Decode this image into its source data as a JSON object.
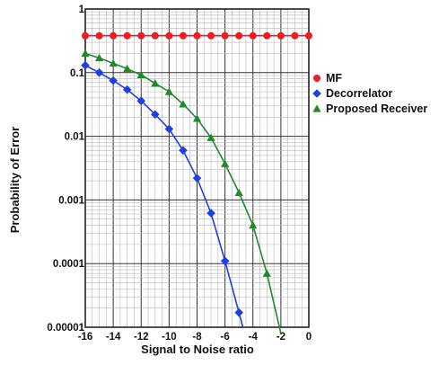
{
  "chart_data": {
    "type": "line",
    "title": "",
    "xlabel": "Signal to Noise ratio",
    "ylabel": "Probability of Error",
    "xlim": [
      -16,
      0
    ],
    "ylim": [
      1e-05,
      1
    ],
    "yscale": "log",
    "grid": true,
    "legend": "right",
    "xticks": [
      -16,
      -14,
      -12,
      -10,
      -8,
      -6,
      -4,
      -2,
      0
    ],
    "xtick_labels": [
      "-16",
      "-14",
      "-12",
      "-10",
      "-8",
      "-6",
      "-4",
      "-2",
      "0"
    ],
    "yticks": [
      1,
      0.1,
      0.01,
      0.001,
      0.0001,
      1e-05
    ],
    "ytick_labels": [
      "1",
      "0.1",
      "0.01",
      "0.001",
      "0.0001",
      "0.00001"
    ],
    "series": [
      {
        "name": "MF",
        "color": "#ee1c24",
        "marker": "circle",
        "x": [
          -16,
          -15,
          -14,
          -13,
          -12,
          -11,
          -10,
          -9,
          -8,
          -7,
          -6,
          -5,
          -4,
          -3,
          -2,
          -1,
          0
        ],
        "y": [
          0.38,
          0.38,
          0.38,
          0.38,
          0.38,
          0.38,
          0.38,
          0.38,
          0.38,
          0.38,
          0.38,
          0.38,
          0.38,
          0.38,
          0.38,
          0.38,
          0.38
        ]
      },
      {
        "name": "Decorrelator",
        "color": "#1f3fe0",
        "marker": "diamond",
        "x": [
          -16,
          -15,
          -14,
          -13,
          -12,
          -11,
          -10,
          -9,
          -8,
          -7,
          -6,
          -5
        ],
        "y": [
          0.13,
          0.1,
          0.075,
          0.054,
          0.036,
          0.022,
          0.013,
          0.006,
          0.0022,
          0.00062,
          0.00011,
          1.7e-05
        ]
      },
      {
        "name": "Proposed Receiver",
        "color": "#1e8a2a",
        "marker": "triangle",
        "x": [
          -16,
          -15,
          -14,
          -13,
          -12,
          -11,
          -10,
          -9,
          -8,
          -7,
          -6,
          -5,
          -4,
          -3,
          -2
        ],
        "y": [
          0.2,
          0.17,
          0.14,
          0.115,
          0.092,
          0.068,
          0.05,
          0.032,
          0.019,
          0.0095,
          0.0037,
          0.0013,
          0.0004,
          7e-05,
          8e-06
        ]
      }
    ]
  }
}
